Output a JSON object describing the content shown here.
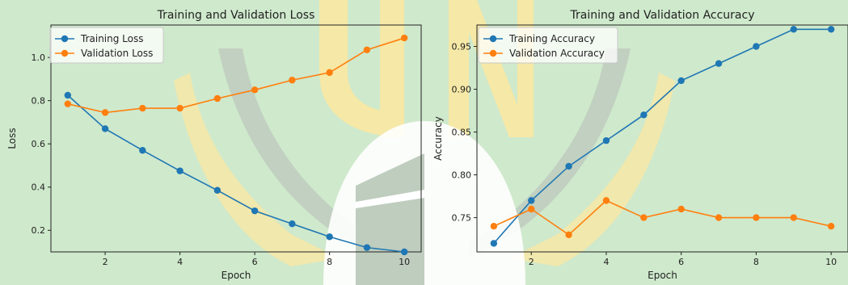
{
  "chart_data": [
    {
      "type": "line",
      "title": "Training and Validation Loss",
      "xlabel": "Epoch",
      "ylabel": "Loss",
      "x": [
        1,
        2,
        3,
        4,
        5,
        6,
        7,
        8,
        9,
        10
      ],
      "xlim": [
        0.55,
        10.45
      ],
      "ylim": [
        0.1,
        1.15
      ],
      "xticks": [
        2,
        4,
        6,
        8,
        10
      ],
      "yticks": [
        0.2,
        0.4,
        0.6,
        0.8,
        1.0
      ],
      "ytick_labels": [
        "0.2",
        "0.4",
        "0.6",
        "0.8",
        "1.0"
      ],
      "grid": false,
      "legend_position": "top-left",
      "series": [
        {
          "name": "Training Loss",
          "color": "#1f77b4",
          "values": [
            0.825,
            0.67,
            0.57,
            0.475,
            0.385,
            0.29,
            0.23,
            0.17,
            0.12,
            0.1
          ]
        },
        {
          "name": "Validation Loss",
          "color": "#ff7f0e",
          "values": [
            0.785,
            0.745,
            0.765,
            0.765,
            0.81,
            0.85,
            0.895,
            0.93,
            1.035,
            1.09
          ]
        }
      ]
    },
    {
      "type": "line",
      "title": "Training and Validation Accuracy",
      "xlabel": "Epoch",
      "ylabel": "Accuracy",
      "x": [
        1,
        2,
        3,
        4,
        5,
        6,
        7,
        8,
        9,
        10
      ],
      "xlim": [
        0.55,
        10.45
      ],
      "ylim": [
        0.71,
        0.975
      ],
      "xticks": [
        2,
        4,
        6,
        8,
        10
      ],
      "yticks": [
        0.75,
        0.8,
        0.85,
        0.9,
        0.95
      ],
      "ytick_labels": [
        "0.75",
        "0.80",
        "0.85",
        "0.90",
        "0.95"
      ],
      "grid": false,
      "legend_position": "top-left",
      "series": [
        {
          "name": "Training Accuracy",
          "color": "#1f77b4",
          "values": [
            0.72,
            0.77,
            0.81,
            0.84,
            0.87,
            0.91,
            0.93,
            0.95,
            0.97,
            0.97
          ]
        },
        {
          "name": "Validation Accuracy",
          "color": "#ff7f0e",
          "values": [
            0.74,
            0.76,
            0.73,
            0.77,
            0.75,
            0.76,
            0.75,
            0.75,
            0.75,
            0.74
          ]
        }
      ]
    }
  ],
  "watermark": {
    "type": "logo",
    "letters": "UIN",
    "colors": {
      "yellow": "#f6e8a6",
      "grey": "#bfcdbf",
      "white": "#ffffff",
      "background": "#cfe9cc"
    }
  }
}
